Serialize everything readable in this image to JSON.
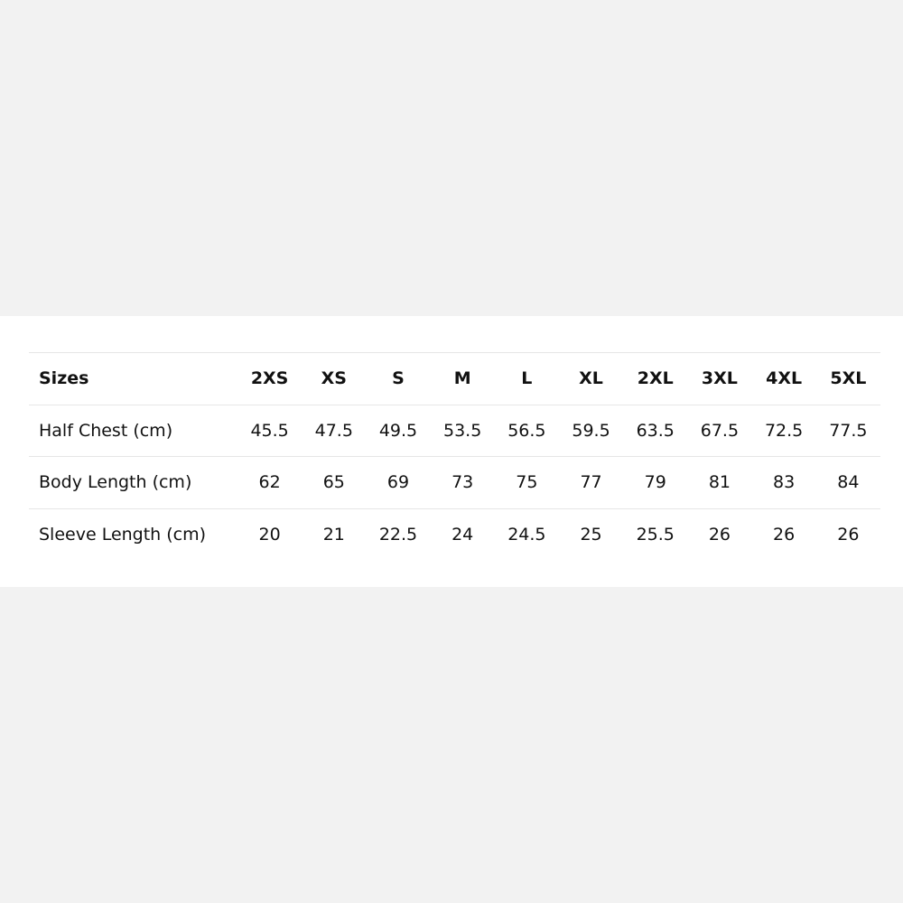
{
  "table": {
    "header_label": "Sizes",
    "sizes": [
      "2XS",
      "XS",
      "S",
      "M",
      "L",
      "XL",
      "2XL",
      "3XL",
      "4XL",
      "5XL"
    ],
    "rows": [
      {
        "label": "Half Chest (cm)",
        "values": [
          "45.5",
          "47.5",
          "49.5",
          "53.5",
          "56.5",
          "59.5",
          "63.5",
          "67.5",
          "72.5",
          "77.5"
        ]
      },
      {
        "label": "Body Length (cm)",
        "values": [
          "62",
          "65",
          "69",
          "73",
          "75",
          "77",
          "79",
          "81",
          "83",
          "84"
        ]
      },
      {
        "label": "Sleeve Length (cm)",
        "values": [
          "20",
          "21",
          "22.5",
          "24",
          "24.5",
          "25",
          "25.5",
          "26",
          "26",
          "26"
        ]
      }
    ]
  }
}
